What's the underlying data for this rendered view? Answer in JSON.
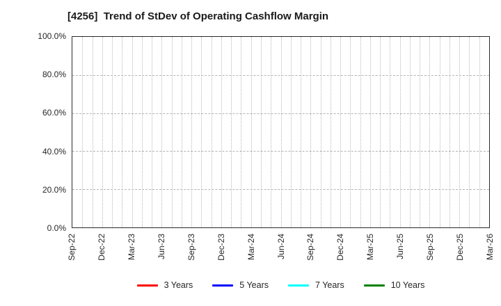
{
  "title": "[4256]  Trend of StDev of Operating Cashflow Margin",
  "colors": {
    "background": "#ffffff",
    "plot_border": "#2b2b2b",
    "grid": "#b8b8b8",
    "text": "#262626",
    "series_3y": "#ff0000",
    "series_5y": "#0000ff",
    "series_7y": "#00ffff",
    "series_10y": "#008000"
  },
  "chart_data": {
    "type": "line",
    "title": "[4256]  Trend of StDev of Operating Cashflow Margin",
    "x_tick_labels": [
      "Sep-22",
      "Dec-22",
      "Mar-23",
      "Jun-23",
      "Sep-23",
      "Dec-23",
      "Mar-24",
      "Jun-24",
      "Sep-24",
      "Dec-24",
      "Mar-25",
      "Jun-25",
      "Sep-25",
      "Dec-25",
      "Mar-26"
    ],
    "x_months_per_label": 3,
    "x_total_intervals": 42,
    "y_ticks": [
      0,
      20,
      40,
      60,
      80,
      100
    ],
    "y_tick_labels": [
      "0.0%",
      "20.0%",
      "40.0%",
      "60.0%",
      "80.0%",
      "100.0%"
    ],
    "ylim": [
      0,
      100
    ],
    "grid": true,
    "grid_style": "dotted-monthly-vertical, dashed-horizontal-at-y-ticks",
    "legend_position": "bottom-center",
    "series": [
      {
        "name": "3 Years",
        "color": "#ff0000",
        "values": []
      },
      {
        "name": "5 Years",
        "color": "#0000ff",
        "values": []
      },
      {
        "name": "7 Years",
        "color": "#00ffff",
        "values": []
      },
      {
        "name": "10 Years",
        "color": "#008000",
        "values": []
      }
    ]
  }
}
